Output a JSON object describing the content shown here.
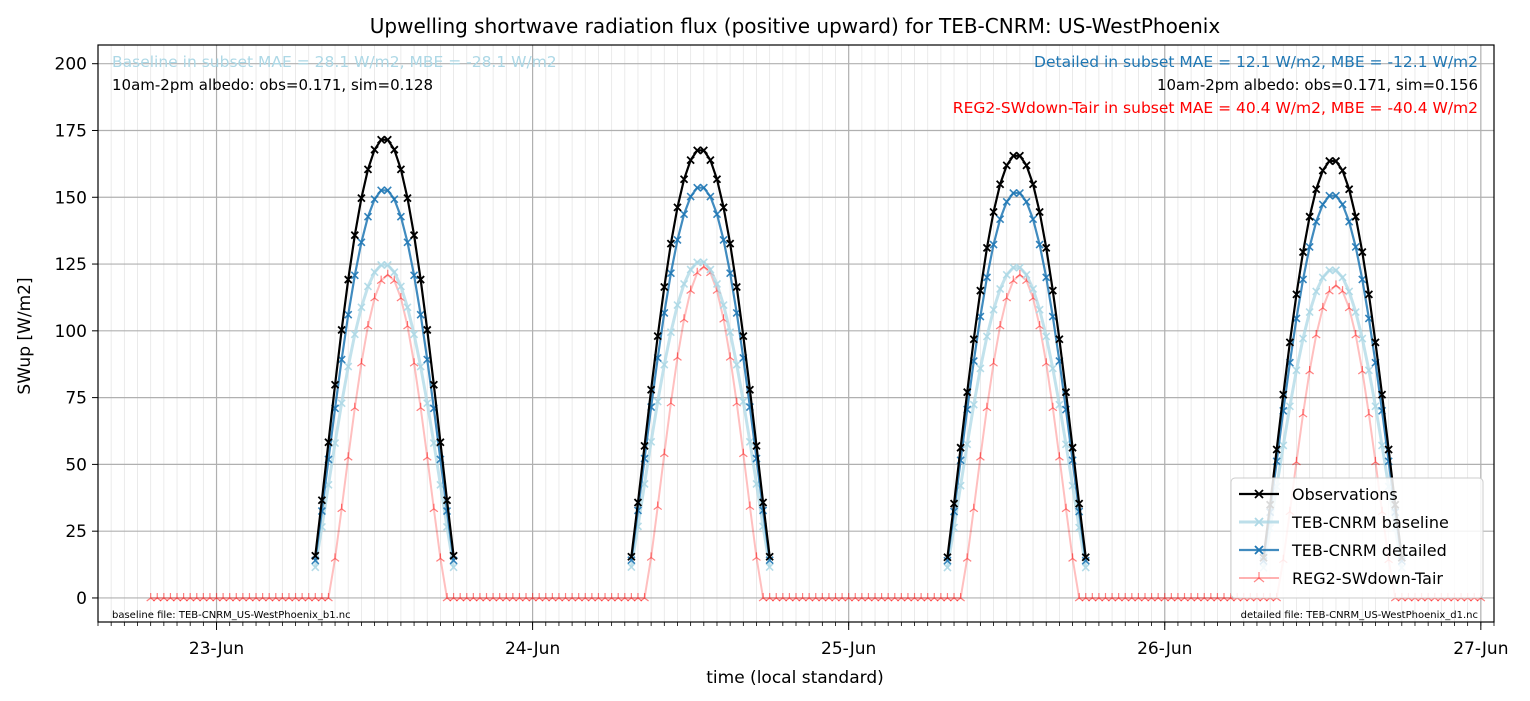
{
  "chart_data": {
    "type": "line",
    "title": "Upwelling shortwave radiation flux (positive upward) for TEB-CNRM: US-WestPhoenix",
    "xlabel": "time (local standard)",
    "ylabel": "SWup [W/m2]",
    "ylim": [
      -9,
      207
    ],
    "xlim": [
      "2024-06-22 15:00",
      "2024-06-27 01:00"
    ],
    "x_ticks": [
      "23-Jun",
      "24-Jun",
      "25-Jun",
      "26-Jun",
      "27-Jun"
    ],
    "y_ticks": [
      0,
      25,
      50,
      75,
      100,
      125,
      150,
      175,
      200
    ],
    "grid": true,
    "legend_position": "lower-right",
    "annotations": {
      "baseline_stats": "Baseline in subset MAE = 28.1 W/m2, MBE = -28.1 W/m2",
      "baseline_albedo": "10am-2pm albedo: obs=0.171, sim=0.128",
      "detailed_stats": "Detailed in subset MAE = 12.1 W/m2, MBE = -12.1 W/m2",
      "detailed_albedo": "10am-2pm albedo: obs=0.171, sim=0.156",
      "reg2_stats": "REG2-SWdown-Tair in subset MAE = 40.4 W/m2, MBE = -40.4 W/m2",
      "baseline_file": "baseline file: TEB-CNRM_US-WestPhoenix_b1.nc",
      "detailed_file": "detailed file: TEB-CNRM_US-WestPhoenix_d1.nc"
    },
    "colors": {
      "Observations": "#000000",
      "TEB-CNRM baseline": "#add8e6",
      "TEB-CNRM detailed": "#1f77b4",
      "REG2-SWdown-Tair": "#ff0000",
      "baseline_text": "#add8e6",
      "detailed_text": "#1f77b4",
      "reg2_text": "#ff0000"
    },
    "daylight": {
      "obs_start_hour": 7.5,
      "obs_end_hour": 18.0,
      "reg2_start_hour": 8.5,
      "reg2_end_hour": 17.5,
      "reg2_zero_start": "2024-06-22 19:00",
      "reg2_zero_end": "2024-06-27 00:00"
    },
    "series": [
      {
        "name": "Observations",
        "daily_peaks": [
          172,
          168,
          166,
          164
        ],
        "marker": "x"
      },
      {
        "name": "TEB-CNRM baseline",
        "daily_peaks": [
          125,
          126,
          124,
          123
        ],
        "marker": "x"
      },
      {
        "name": "TEB-CNRM detailed",
        "daily_peaks": [
          153,
          154,
          152,
          151
        ],
        "marker": "x"
      },
      {
        "name": "REG2-SWdown-Tair",
        "daily_peaks": [
          121,
          124,
          121,
          117
        ],
        "marker": "tri"
      }
    ]
  }
}
